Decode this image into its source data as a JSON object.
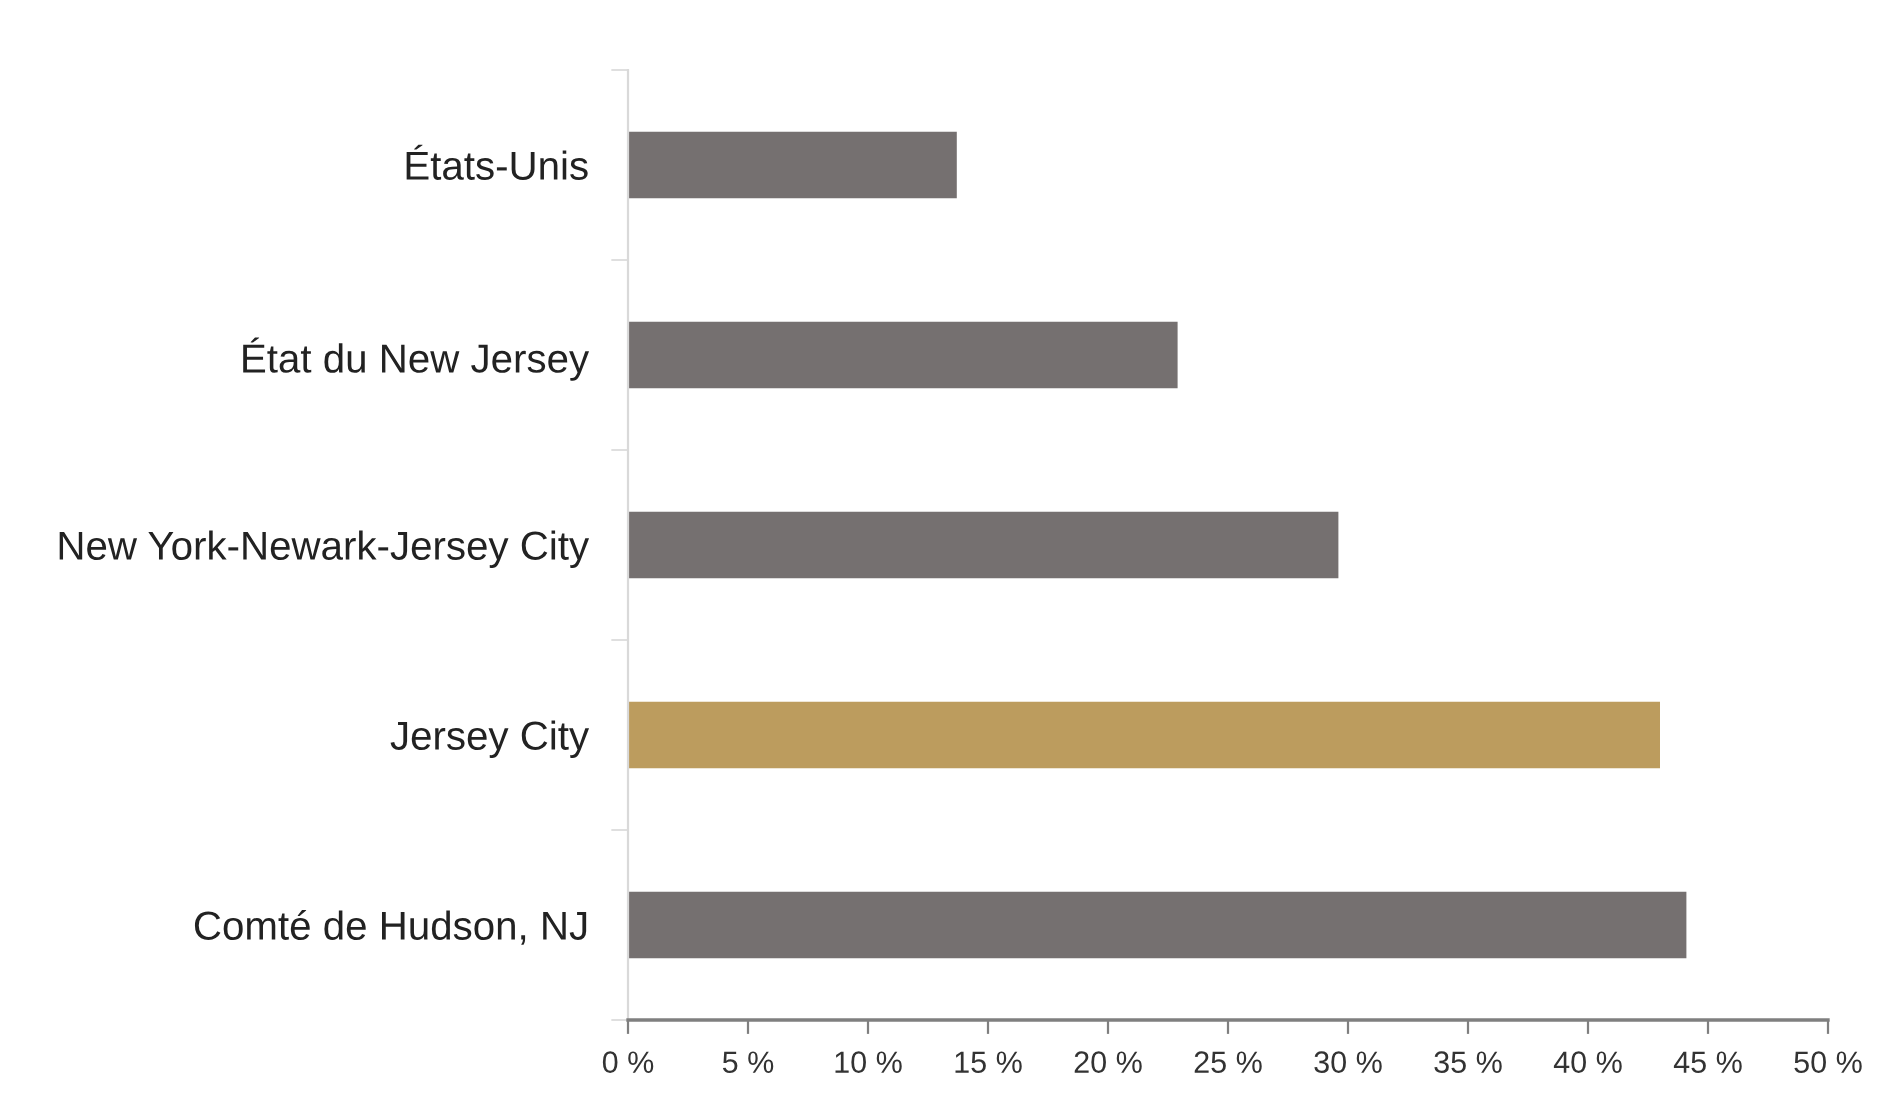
{
  "chart_data": {
    "type": "bar",
    "orientation": "horizontal",
    "categories": [
      "États-Unis",
      "État du New Jersey",
      "New York-Newark-Jersey City",
      "Jersey City",
      "Comté de Hudson, NJ"
    ],
    "values": [
      13.7,
      22.9,
      29.6,
      43.0,
      44.1
    ],
    "colors": [
      "#757070",
      "#757070",
      "#757070",
      "#bc9c5e",
      "#757070"
    ],
    "xlim": [
      0,
      50
    ],
    "xticks": [
      {
        "value": 0,
        "label": "0 %"
      },
      {
        "value": 5,
        "label": "5 %"
      },
      {
        "value": 10,
        "label": "10 %"
      },
      {
        "value": 15,
        "label": "15 %"
      },
      {
        "value": 20,
        "label": "20 %"
      },
      {
        "value": 25,
        "label": "25 %"
      },
      {
        "value": 30,
        "label": "30 %"
      },
      {
        "value": 35,
        "label": "35 %"
      },
      {
        "value": 40,
        "label": "40 %"
      },
      {
        "value": 45,
        "label": "45 %"
      },
      {
        "value": 50,
        "label": "50 %"
      }
    ]
  }
}
